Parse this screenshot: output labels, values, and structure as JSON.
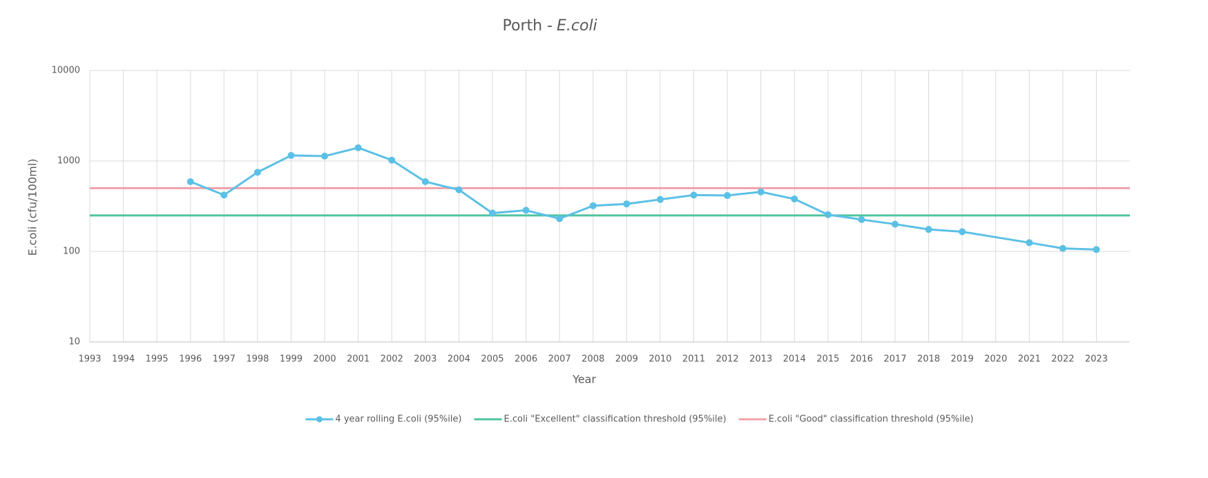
{
  "chart_data": {
    "type": "line",
    "title": "Porth -",
    "title_italic": "E.coli",
    "x_label": "Year",
    "y_label": "E.coli (cfu/100ml)",
    "log_y": true,
    "grid": true,
    "legend": "bottom",
    "xlim": [
      1993,
      2024
    ],
    "xticks": [
      1993,
      1994,
      1995,
      1996,
      1997,
      1998,
      1999,
      2000,
      2001,
      2002,
      2003,
      2004,
      2005,
      2006,
      2007,
      2008,
      2009,
      2010,
      2011,
      2012,
      2013,
      2014,
      2015,
      2016,
      2017,
      2018,
      2019,
      2020,
      2021,
      2022,
      2023
    ],
    "ylim": [
      10,
      10000
    ],
    "yticks": [
      10,
      100,
      1000,
      10000
    ],
    "series": [
      {
        "name": "4 year rolling E.coli (95%ile)",
        "color": "#5bc0e6",
        "x": [
          1996,
          1997,
          1998,
          1999,
          2000,
          2001,
          2002,
          2003,
          2004,
          2005,
          2006,
          2007,
          2008,
          2009,
          2010,
          2011,
          2012,
          2013,
          2014,
          2015,
          2016,
          2017,
          2018,
          2019,
          2021,
          2022,
          2023
        ],
        "values": [
          590,
          420,
          750,
          1150,
          1130,
          1400,
          1020,
          590,
          480,
          265,
          285,
          230,
          320,
          335,
          375,
          420,
          415,
          455,
          380,
          255,
          225,
          200,
          175,
          165,
          125,
          108,
          105
        ]
      },
      {
        "name": "E.coli \"Excellent\" classification threshold (95%ile)",
        "color": "#4fc4a0",
        "value": 250
      },
      {
        "name": "E.coli \"Good\" classification threshold (95%ile)",
        "color": "#f0a0aa",
        "value": 500
      }
    ]
  }
}
